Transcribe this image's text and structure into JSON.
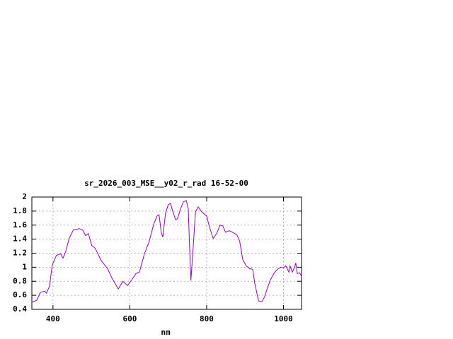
{
  "chart_data": {
    "type": "line",
    "title": "sr_2026_003_MSE__y02_r_rad 16-52-00",
    "x_label": "nm",
    "xlim": [
      345,
      1047
    ],
    "xticks": [
      400,
      600,
      800,
      1000
    ],
    "ylim": [
      0.4,
      2
    ],
    "yticks": [
      0.4,
      0.6,
      0.8,
      1,
      1.2,
      1.4,
      1.6,
      1.8,
      2
    ],
    "grid": true,
    "series": [
      {
        "color": "#9400d3",
        "x": [
          345,
          358,
          367,
          378,
          383,
          391,
          398,
          409,
          420,
          426,
          433,
          442,
          453,
          468,
          477,
          485,
          492,
          501,
          510,
          525,
          542,
          553,
          570,
          582,
          594,
          605,
          616,
          625,
          638,
          650,
          662,
          671,
          676,
          682,
          686,
          693,
          700,
          706,
          711,
          719,
          724,
          732,
          739,
          747,
          752,
          756,
          759,
          765,
          771,
          778,
          787,
          800,
          807,
          817,
          826,
          835,
          842,
          849,
          859,
          870,
          879,
          886,
          894,
          903,
          912,
          920,
          925,
          935,
          944,
          951,
          958,
          966,
          975,
          984,
          993,
          1000,
          1006,
          1014,
          1017,
          1023,
          1029,
          1032,
          1036,
          1042,
          1047
        ],
        "values": [
          0.5,
          0.53,
          0.64,
          0.66,
          0.63,
          0.73,
          1.03,
          1.17,
          1.19,
          1.13,
          1.22,
          1.41,
          1.53,
          1.55,
          1.53,
          1.45,
          1.48,
          1.31,
          1.27,
          1.1,
          0.98,
          0.85,
          0.69,
          0.8,
          0.74,
          0.82,
          0.91,
          0.93,
          1.19,
          1.36,
          1.61,
          1.73,
          1.75,
          1.49,
          1.43,
          1.77,
          1.89,
          1.91,
          1.81,
          1.68,
          1.69,
          1.83,
          1.93,
          1.95,
          1.84,
          1.23,
          0.81,
          1.29,
          1.79,
          1.86,
          1.79,
          1.73,
          1.58,
          1.41,
          1.48,
          1.6,
          1.59,
          1.5,
          1.52,
          1.49,
          1.46,
          1.37,
          1.11,
          1.02,
          0.98,
          0.97,
          0.78,
          0.52,
          0.51,
          0.58,
          0.7,
          0.82,
          0.91,
          0.97,
          1.0,
          0.99,
          1.02,
          0.93,
          1.02,
          0.93,
          1.0,
          1.06,
          0.91,
          0.92,
          0.87
        ]
      }
    ]
  }
}
